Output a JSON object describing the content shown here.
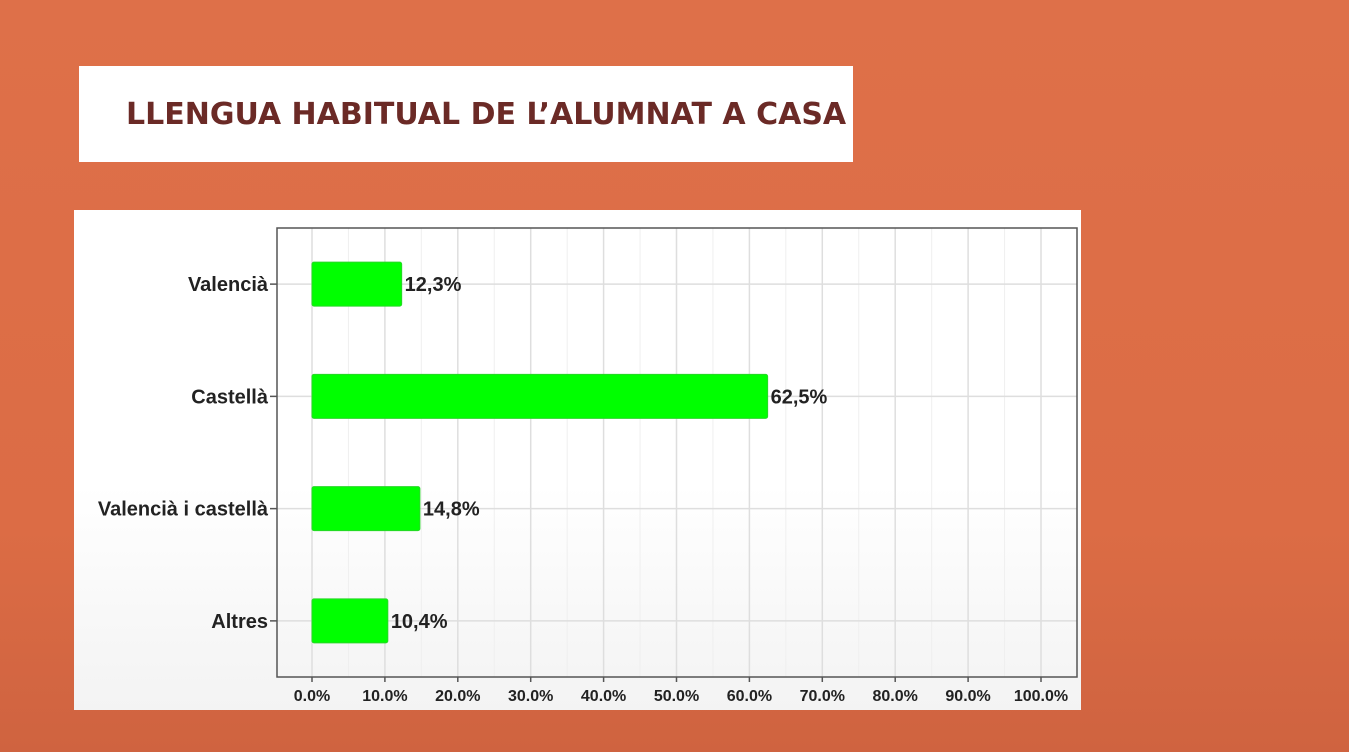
{
  "slide": {
    "title": "LLENGUA HABITUAL DE L’ALUMNAT A CASA"
  },
  "colors": {
    "background": "#de7049",
    "title_text": "#6b2a26",
    "bar": "#00ff00"
  },
  "chart_data": {
    "type": "bar",
    "orientation": "horizontal",
    "categories": [
      "Valencià",
      "Castellà",
      "Valencià i castellà",
      "Altres"
    ],
    "values": [
      12.3,
      62.5,
      14.8,
      10.4
    ],
    "value_labels": [
      "12,3%",
      "62,5%",
      "14,8%",
      "10,4%"
    ],
    "xlim": [
      0,
      100
    ],
    "xticks": [
      0,
      10,
      20,
      30,
      40,
      50,
      60,
      70,
      80,
      90,
      100
    ],
    "xtick_labels": [
      "0.0%",
      "10.0%",
      "20.0%",
      "30.0%",
      "40.0%",
      "50.0%",
      "60.0%",
      "70.0%",
      "80.0%",
      "90.0%",
      "100.0%"
    ],
    "title": "",
    "xlabel": "",
    "ylabel": "",
    "grid": true,
    "legend": "none"
  }
}
